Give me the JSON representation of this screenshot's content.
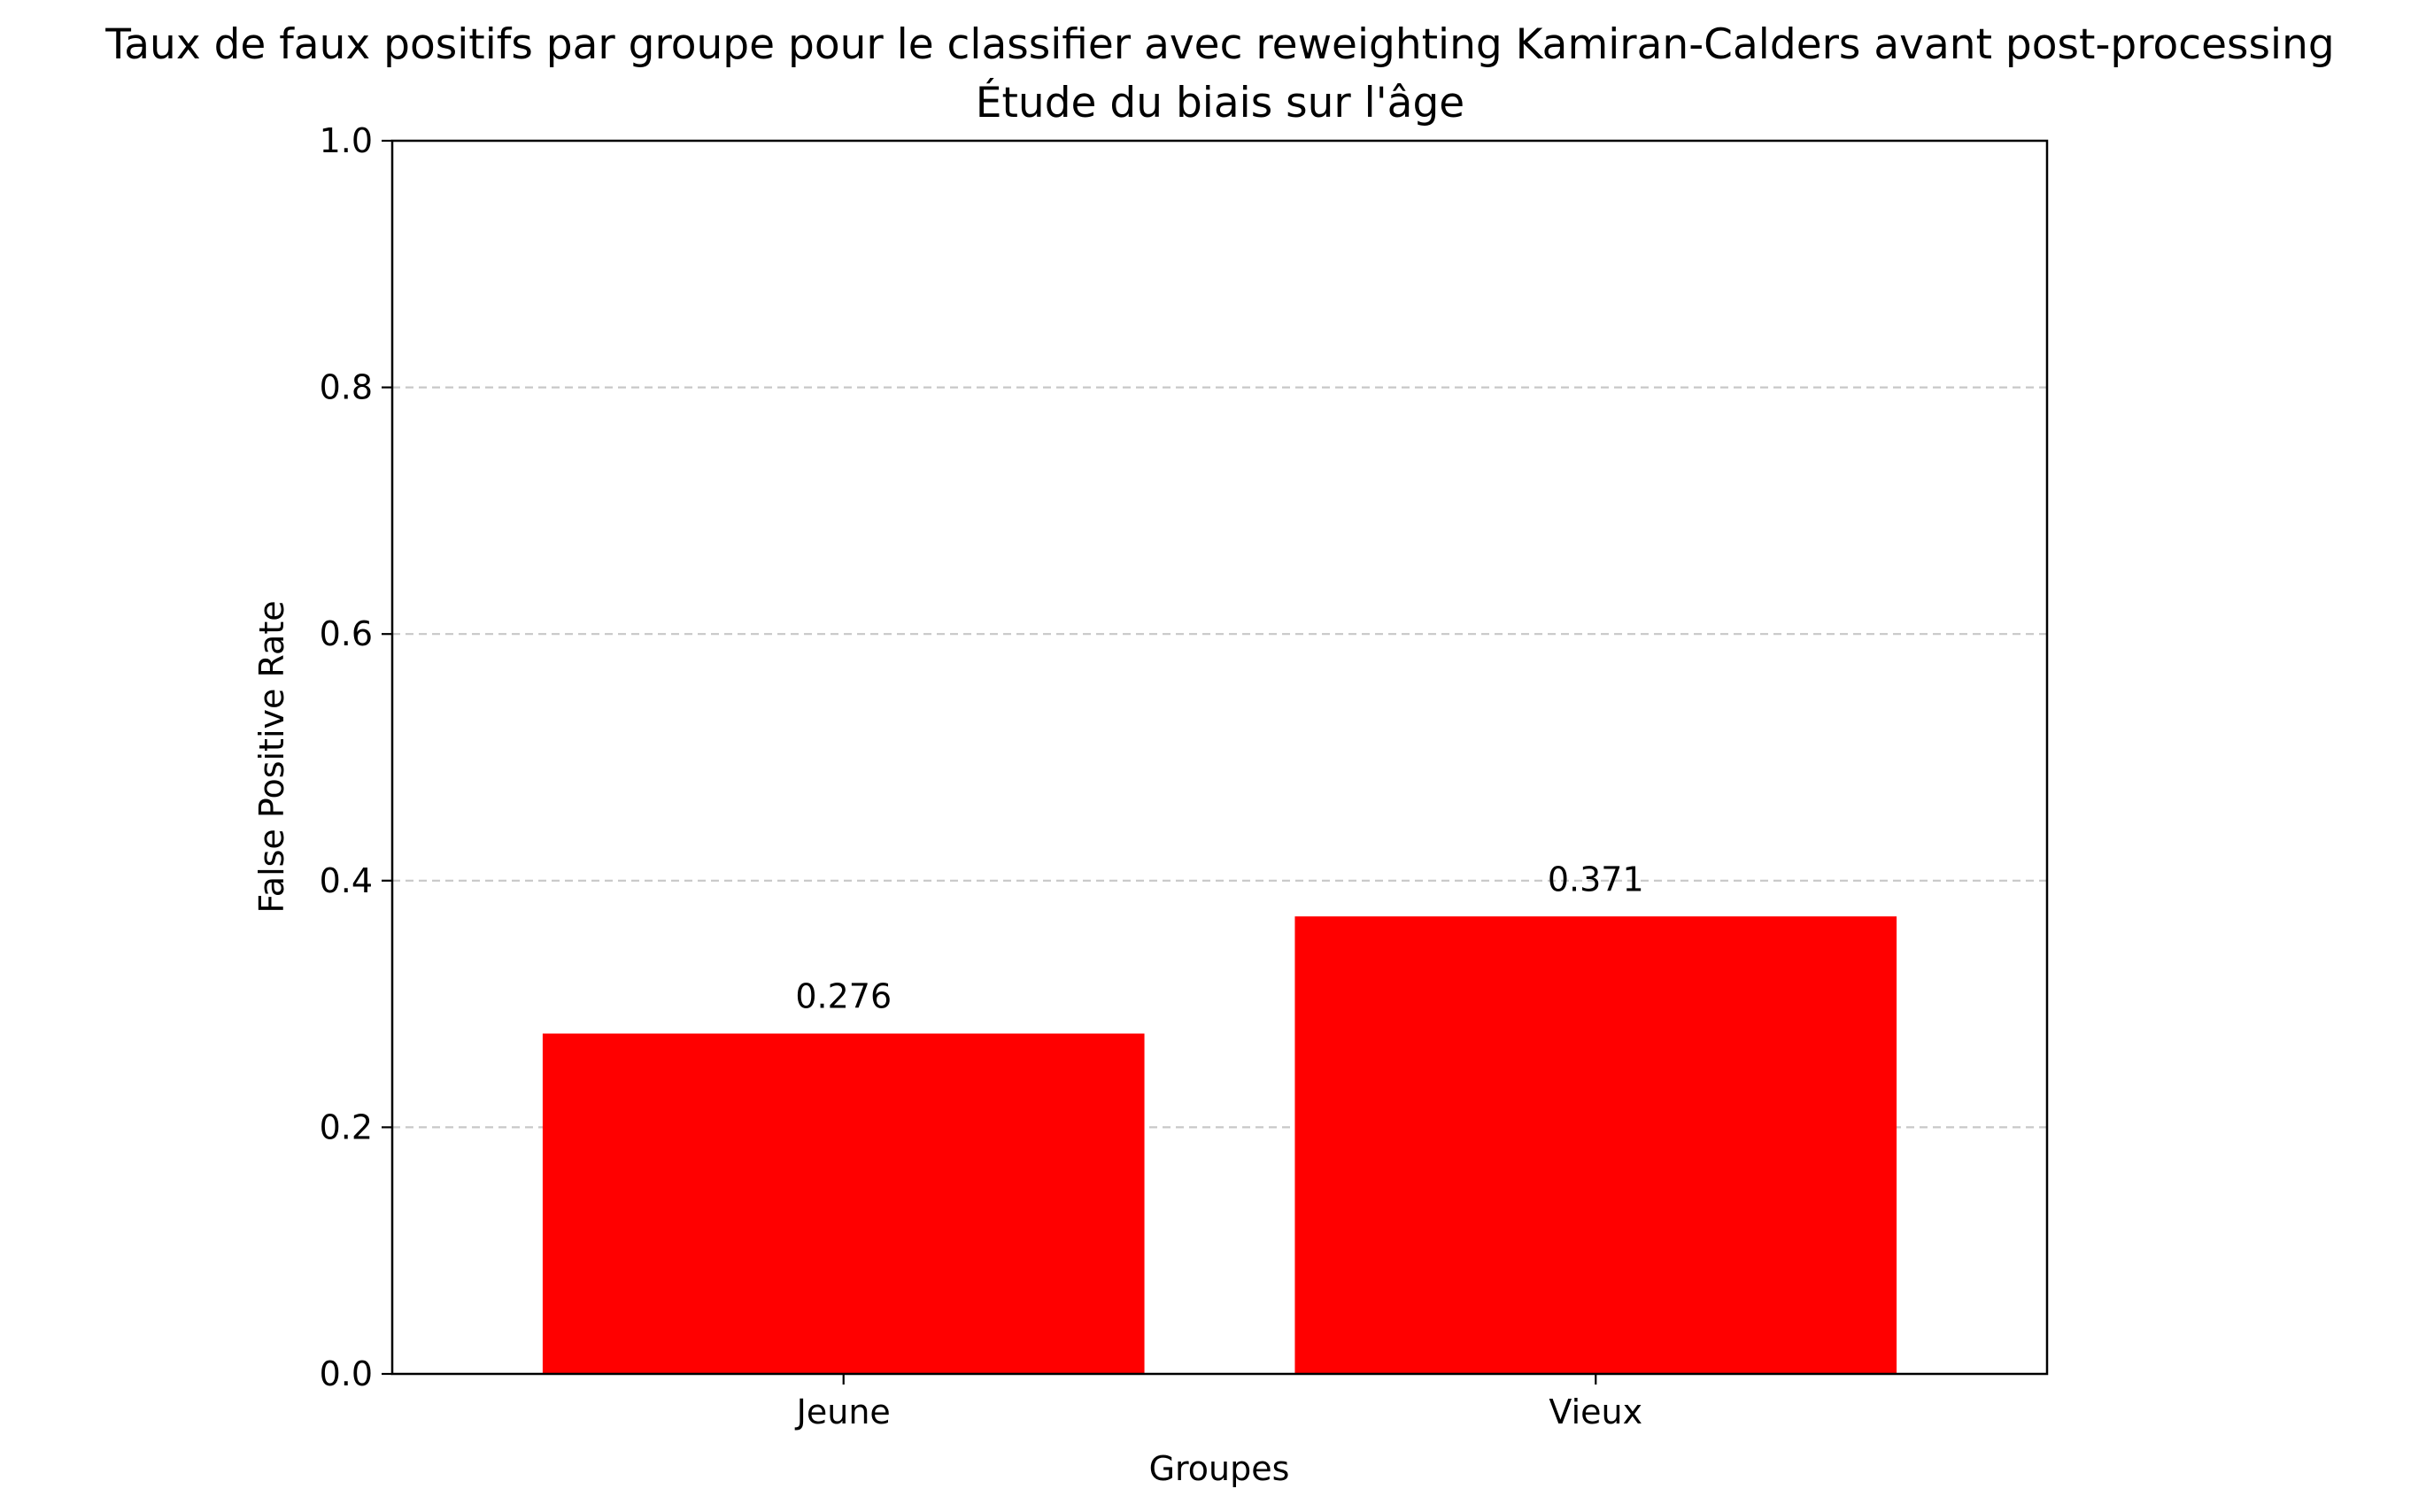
{
  "chart_data": {
    "type": "bar",
    "title": "Taux de faux positifs par groupe pour le classifier avec reweighting Kamiran-Calders avant post-processing",
    "subtitle": "Étude du biais sur l'âge",
    "xlabel": "Groupes",
    "ylabel": "False Positive Rate",
    "categories": [
      "Jeune",
      "Vieux"
    ],
    "values": [
      0.276,
      0.371
    ],
    "value_labels": [
      "0.276",
      "0.371"
    ],
    "ylim": [
      0,
      1.0
    ],
    "yticks": [
      0.0,
      0.2,
      0.4,
      0.6,
      0.8,
      1.0
    ],
    "ytick_labels": [
      "0.0",
      "0.2",
      "0.4",
      "0.6",
      "0.8",
      "1.0"
    ],
    "grid": "y-dashed",
    "bar_color": "#ff0000",
    "grid_color": "#c8c8c8"
  }
}
